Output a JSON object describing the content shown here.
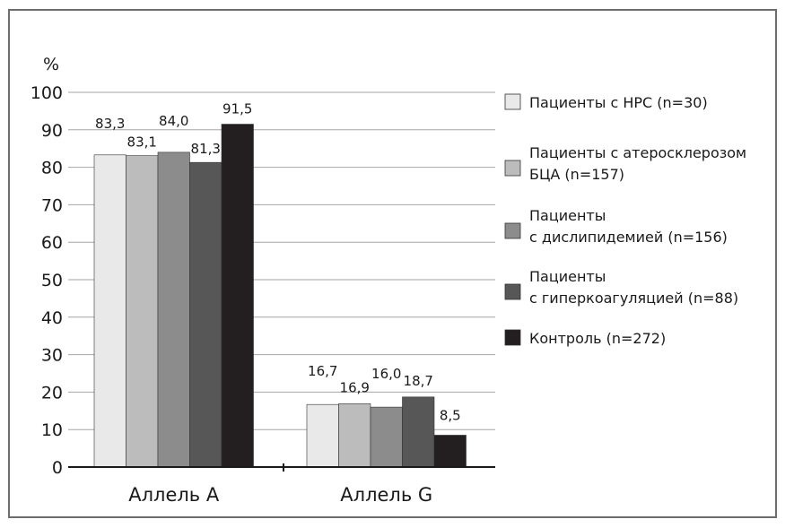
{
  "chart_data": {
    "type": "bar",
    "ylabel": "%",
    "ylim": [
      0,
      100
    ],
    "yticks": [
      0,
      10,
      20,
      30,
      40,
      50,
      60,
      70,
      80,
      90,
      100
    ],
    "categories": [
      "Аллель А",
      "Аллель G"
    ],
    "series": [
      {
        "name": "Пациенты с НРС (n=30)",
        "values": [
          83.3,
          16.7
        ],
        "labels": [
          "83,3",
          "16,7"
        ],
        "color": "#e9e9e9"
      },
      {
        "name": "Пациенты с атеросклерозом БЦА (n=157)",
        "legend_lines": [
          "Пациенты с атеросклерозом",
          "БЦА (n=157)"
        ],
        "values": [
          83.1,
          16.9
        ],
        "labels": [
          "83,1",
          "16,9"
        ],
        "color": "#bcbcbc"
      },
      {
        "name": "Пациенты с дислипидемией (n=156)",
        "legend_lines": [
          "Пациенты",
          "с дислипидемией (n=156)"
        ],
        "values": [
          84.0,
          16.0
        ],
        "labels": [
          "84,0",
          "16,0"
        ],
        "color": "#8c8c8c"
      },
      {
        "name": "Пациенты с гиперкоагуляцией (n=88)",
        "legend_lines": [
          "Пациенты",
          "с гиперкоагуляцией (n=88)"
        ],
        "values": [
          81.3,
          18.7
        ],
        "labels": [
          "81,3",
          "18,7"
        ],
        "color": "#575757"
      },
      {
        "name": "Контроль (n=272)",
        "values": [
          91.5,
          8.5
        ],
        "labels": [
          "91,5",
          "8,5"
        ],
        "color": "#231f20"
      }
    ],
    "grid": true,
    "legend_position": "right"
  }
}
